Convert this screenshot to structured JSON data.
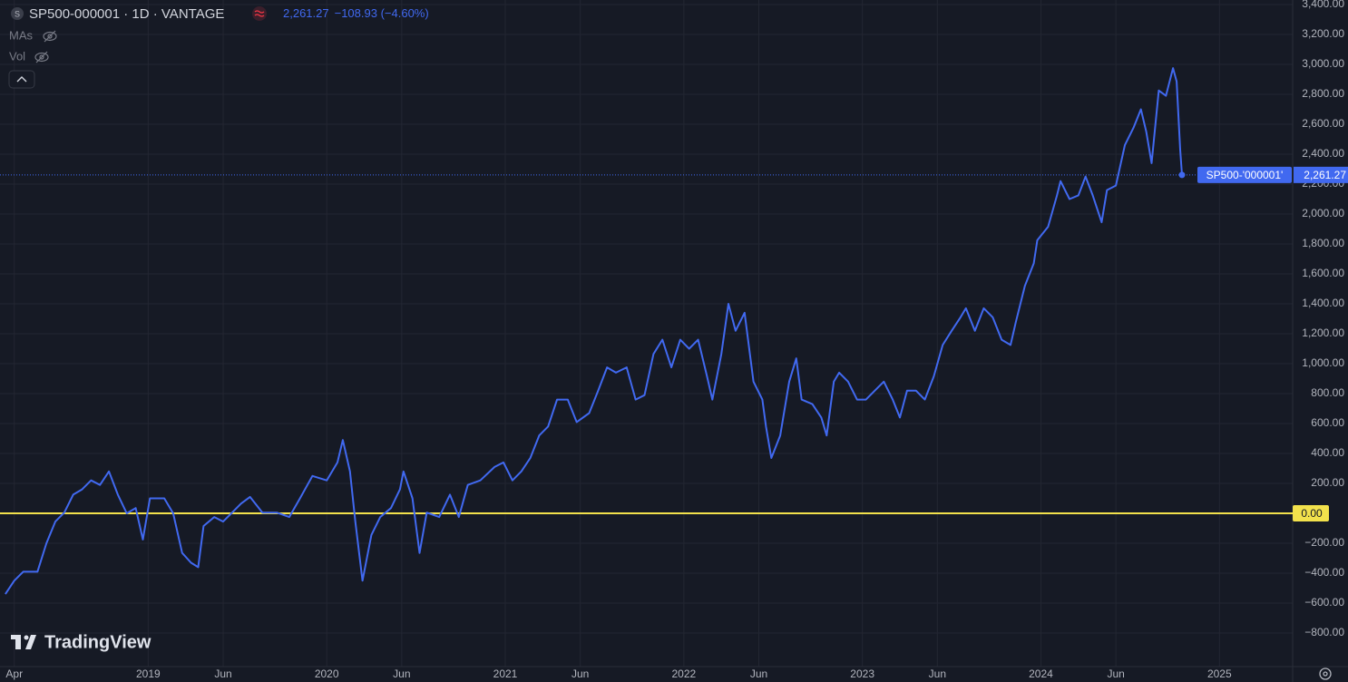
{
  "chart_data": {
    "type": "line",
    "symbol_icon": "S",
    "title": "SP500-000001 · 1D · VANTAGE",
    "last_value_label": "2,261.27",
    "change_label": "−108.93 (−4.60%)",
    "indicators": [
      "MAs",
      "Vol"
    ],
    "watermark": "TradingView",
    "grid": true,
    "xlim": [
      2018.17,
      2025.41
    ],
    "ylim": [
      -1024,
      3430
    ],
    "xticks": [
      {
        "value": 2018.25,
        "label": "Apr"
      },
      2019,
      {
        "value": 2019.42,
        "label": "Jun"
      },
      2020,
      {
        "value": 2020.42,
        "label": "Jun"
      },
      2021,
      {
        "value": 2021.42,
        "label": "Jun"
      },
      2022,
      {
        "value": 2022.42,
        "label": "Jun"
      },
      2023,
      {
        "value": 2023.42,
        "label": "Jun"
      },
      2024,
      {
        "value": 2024.42,
        "label": "Jun"
      },
      2025
    ],
    "yticks": [
      {
        "value": -800,
        "label": "−800.00"
      },
      {
        "value": -600,
        "label": "−600.00"
      },
      {
        "value": -400,
        "label": "−400.00"
      },
      {
        "value": -200,
        "label": "−200.00"
      },
      {
        "value": 200,
        "label": "200.00"
      },
      {
        "value": 400,
        "label": "400.00"
      },
      {
        "value": 600,
        "label": "600.00"
      },
      {
        "value": 800,
        "label": "800.00"
      },
      {
        "value": 1000,
        "label": "1,000.00"
      },
      {
        "value": 1200,
        "label": "1,200.00"
      },
      {
        "value": 1400,
        "label": "1,400.00"
      },
      {
        "value": 1600,
        "label": "1,600.00"
      },
      {
        "value": 1800,
        "label": "1,800.00"
      },
      {
        "value": 2000,
        "label": "2,000.00"
      },
      {
        "value": 2200,
        "label": "2,200.00"
      },
      {
        "value": 2400,
        "label": "2,400.00"
      },
      {
        "value": 2600,
        "label": "2,600.00"
      },
      {
        "value": 2800,
        "label": "2,800.00"
      },
      {
        "value": 3000,
        "label": "3,000.00"
      },
      {
        "value": 3200,
        "label": "3,200.00"
      },
      {
        "value": 3400,
        "label": "3,400.00"
      }
    ],
    "hline": {
      "value": 0,
      "label": "0.00",
      "color": "#f2e14c"
    },
    "x": [
      2018.2,
      2018.25,
      2018.3,
      2018.38,
      2018.43,
      2018.48,
      2018.53,
      2018.58,
      2018.63,
      2018.68,
      2018.73,
      2018.78,
      2018.83,
      2018.88,
      2018.93,
      2018.97,
      2019.01,
      2019.09,
      2019.14,
      2019.19,
      2019.24,
      2019.28,
      2019.31,
      2019.37,
      2019.42,
      2019.47,
      2019.52,
      2019.57,
      2019.64,
      2019.72,
      2019.79,
      2019.85,
      2019.92,
      2020.0,
      2020.06,
      2020.09,
      2020.13,
      2020.16,
      2020.2,
      2020.25,
      2020.3,
      2020.36,
      2020.41,
      2020.43,
      2020.48,
      2020.52,
      2020.56,
      2020.63,
      2020.69,
      2020.74,
      2020.79,
      2020.86,
      2020.94,
      2020.99,
      2021.04,
      2021.09,
      2021.14,
      2021.19,
      2021.24,
      2021.29,
      2021.35,
      2021.4,
      2021.47,
      2021.52,
      2021.57,
      2021.62,
      2021.68,
      2021.73,
      2021.78,
      2021.83,
      2021.88,
      2021.93,
      2021.98,
      2022.03,
      2022.08,
      2022.13,
      2022.16,
      2022.21,
      2022.25,
      2022.29,
      2022.34,
      2022.39,
      2022.44,
      2022.46,
      2022.49,
      2022.54,
      2022.59,
      2022.63,
      2022.66,
      2022.72,
      2022.77,
      2022.8,
      2022.84,
      2022.87,
      2022.92,
      2022.97,
      2023.02,
      2023.07,
      2023.12,
      2023.17,
      2023.21,
      2023.25,
      2023.3,
      2023.35,
      2023.4,
      2023.45,
      2023.5,
      2023.55,
      2023.58,
      2023.63,
      2023.68,
      2023.73,
      2023.78,
      2023.83,
      2023.86,
      2023.91,
      2023.96,
      2023.98,
      2024.04,
      2024.09,
      2024.11,
      2024.16,
      2024.21,
      2024.25,
      2024.29,
      2024.34,
      2024.37,
      2024.42,
      2024.47,
      2024.52,
      2024.56,
      2024.59,
      2024.62,
      2024.66,
      2024.7,
      2024.74,
      2024.76,
      2024.78,
      2024.79
    ],
    "series": [
      {
        "name": "SP500-'000001'",
        "color": "#4169f0",
        "values": [
          -540,
          -450,
          -390,
          -390,
          -200,
          -55,
          5,
          125,
          160,
          220,
          190,
          280,
          125,
          0,
          35,
          -175,
          100,
          100,
          0,
          -265,
          -330,
          -360,
          -85,
          -25,
          -55,
          5,
          65,
          110,
          5,
          5,
          -25,
          100,
          250,
          220,
          340,
          490,
          280,
          -55,
          -450,
          -145,
          -25,
          35,
          160,
          280,
          100,
          -265,
          5,
          -25,
          125,
          -25,
          190,
          220,
          310,
          340,
          220,
          280,
          370,
          520,
          580,
          760,
          760,
          610,
          670,
          820,
          975,
          940,
          975,
          760,
          790,
          1065,
          1160,
          975,
          1160,
          1100,
          1160,
          915,
          760,
          1065,
          1400,
          1220,
          1340,
          880,
          760,
          580,
          370,
          520,
          880,
          1035,
          760,
          730,
          640,
          520,
          880,
          940,
          880,
          760,
          760,
          820,
          880,
          760,
          640,
          820,
          820,
          760,
          915,
          1125,
          1220,
          1310,
          1370,
          1220,
          1370,
          1310,
          1160,
          1125,
          1280,
          1520,
          1670,
          1825,
          1915,
          2125,
          2220,
          2100,
          2125,
          2250,
          2125,
          1945,
          2160,
          2190,
          2460,
          2580,
          2700,
          2550,
          2340,
          2825,
          2790,
          2975,
          2885,
          2430,
          2261.27
        ]
      }
    ]
  }
}
